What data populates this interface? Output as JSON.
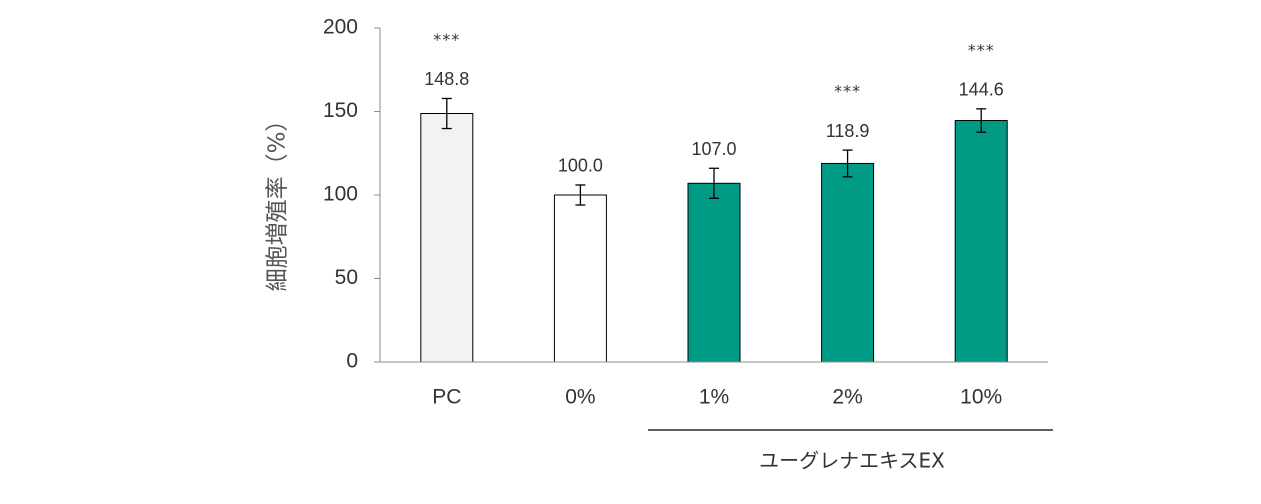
{
  "chart_data": {
    "type": "bar",
    "ylabel": "細胞増殖率（%）",
    "ylim": [
      0,
      200
    ],
    "yticks": [
      0,
      50,
      100,
      150,
      200
    ],
    "categories": [
      "PC",
      "0%",
      "1%",
      "2%",
      "10%"
    ],
    "values": [
      148.8,
      100.0,
      107.0,
      118.9,
      144.6
    ],
    "value_labels": [
      "148.8",
      "100.0",
      "107.0",
      "118.9",
      "144.6"
    ],
    "errors": [
      9,
      6,
      9,
      8,
      7
    ],
    "significance": [
      "***",
      "",
      "",
      "***",
      "***"
    ],
    "bar_colors": [
      "#f2f2f2",
      "#ffffff",
      "#009a85",
      "#009a85",
      "#009a85"
    ],
    "group_label": "ユーグレナエキスEX",
    "group_categories": [
      "1%",
      "2%",
      "10%"
    ],
    "grid": false,
    "legend": "none"
  }
}
